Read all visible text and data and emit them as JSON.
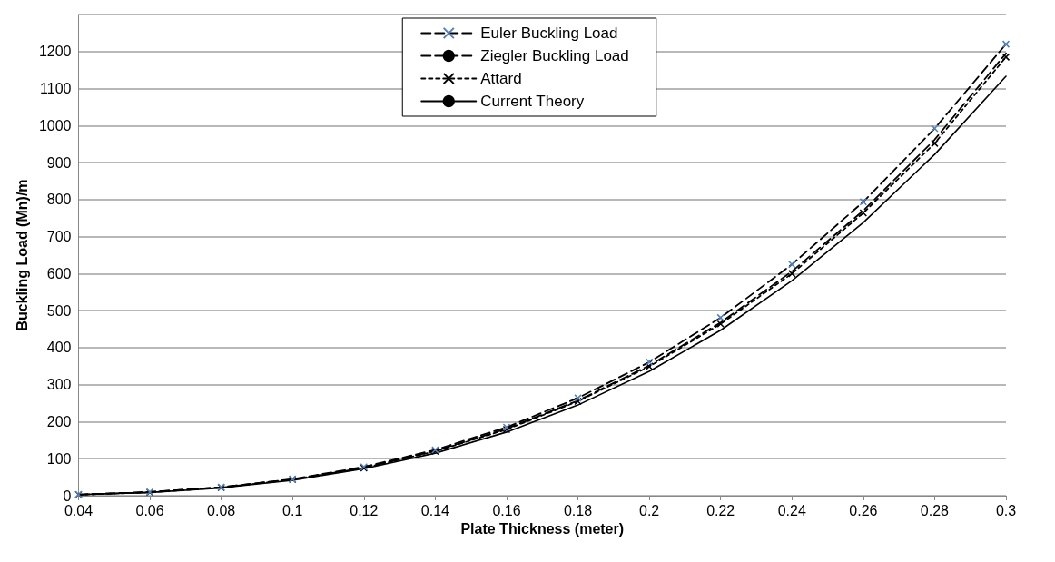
{
  "chart_data": {
    "type": "line",
    "xlabel": "Plate Thickness (meter)",
    "ylabel": "Buckling Load (Mn)/m",
    "categories": [
      "0.04",
      "0.06",
      "0.08",
      "0.1",
      "0.12",
      "0.14",
      "0.16",
      "0.18",
      "0.2",
      "0.22",
      "0.24",
      "0.26",
      "0.28",
      "0.3"
    ],
    "series": [
      {
        "name": "Euler Buckling Load",
        "color": "#4f81bd",
        "marker": "cross",
        "line_style": "dashed",
        "values": [
          3,
          10,
          23,
          45,
          78,
          124,
          185,
          264,
          361,
          481,
          625,
          794,
          992,
          1220
        ]
      },
      {
        "name": "Ziegler Buckling Load",
        "color": "#000000",
        "marker": "none",
        "line_style": "dashed",
        "values": [
          3,
          10,
          23,
          44,
          76,
          121,
          181,
          257,
          352,
          468,
          606,
          770,
          962,
          1195
        ]
      },
      {
        "name": "Attard",
        "color": "#000000",
        "marker": "cross",
        "line_style": "dotted",
        "values": [
          3,
          9,
          22,
          44,
          75,
          120,
          179,
          255,
          349,
          464,
          600,
          764,
          952,
          1185
        ]
      },
      {
        "name": "Current Theory",
        "color": "#000000",
        "marker": "none",
        "line_style": "solid",
        "values": [
          3,
          9,
          21,
          42,
          73,
          115,
          172,
          245,
          336,
          447,
          581,
          738,
          922,
          1133
        ]
      }
    ],
    "ylim": [
      0,
      1300
    ],
    "yticks": [
      0,
      100,
      200,
      300,
      400,
      500,
      600,
      700,
      800,
      900,
      1000,
      1100,
      1200,
      {
        "value": 1300,
        "label": null
      }
    ],
    "grid": "y",
    "legend": "top"
  }
}
